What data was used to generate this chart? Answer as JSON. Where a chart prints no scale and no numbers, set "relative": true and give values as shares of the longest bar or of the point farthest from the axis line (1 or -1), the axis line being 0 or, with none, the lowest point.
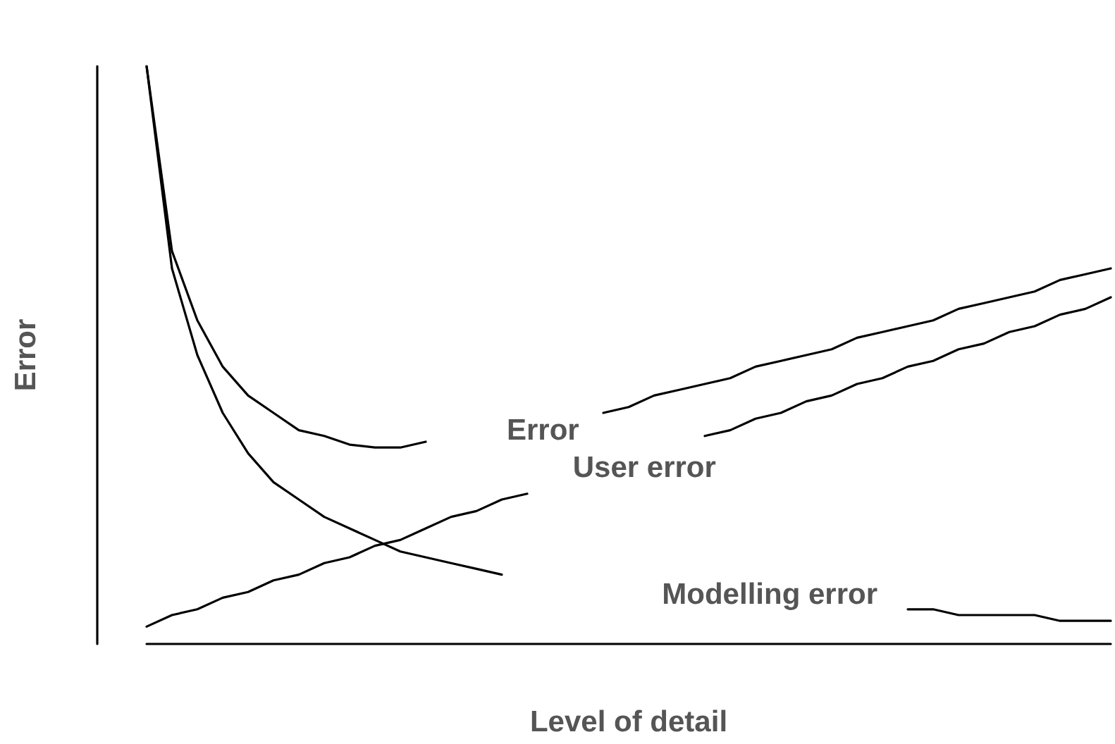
{
  "chart_data": {
    "type": "line",
    "xlabel": "Level of detail",
    "ylabel": "Error",
    "relative": true,
    "grid": false,
    "legend": false,
    "marker": "none",
    "line_style": "solid",
    "categories": [
      null,
      null,
      null,
      null,
      null,
      null,
      null,
      null,
      null,
      null,
      null,
      null,
      null,
      null,
      null,
      null,
      null,
      null,
      null,
      null,
      null,
      null,
      null,
      null,
      null,
      null,
      null,
      null,
      null,
      null,
      null,
      null,
      null,
      null,
      null,
      null,
      null,
      null,
      null
    ],
    "series": [
      {
        "name": "Error",
        "color": "#000000",
        "values": [
          1,
          0.68,
          0.56,
          0.48,
          0.43,
          0.4,
          0.37,
          0.36,
          0.345,
          0.34,
          0.34,
          0.35,
          null,
          null,
          null,
          null,
          null,
          null,
          0.4,
          0.41,
          0.43,
          0.44,
          0.45,
          0.46,
          0.48,
          0.49,
          0.5,
          0.51,
          0.53,
          0.54,
          0.55,
          0.56,
          0.58,
          0.59,
          0.6,
          0.61,
          0.63,
          0.64,
          0.65
        ]
      },
      {
        "name": "User error",
        "color": "#000000",
        "values": [
          0.03,
          0.05,
          0.06,
          0.08,
          0.09,
          0.11,
          0.12,
          0.14,
          0.15,
          0.17,
          0.18,
          0.2,
          0.22,
          0.23,
          0.25,
          0.26,
          null,
          null,
          null,
          null,
          null,
          null,
          0.36,
          0.37,
          0.39,
          0.4,
          0.42,
          0.43,
          0.45,
          0.46,
          0.48,
          0.49,
          0.51,
          0.52,
          0.54,
          0.55,
          0.57,
          0.58,
          0.6
        ]
      },
      {
        "name": "Modelling error",
        "color": "#000000",
        "values": [
          1,
          0.65,
          0.5,
          0.4,
          0.33,
          0.28,
          0.25,
          0.22,
          0.2,
          0.18,
          0.16,
          0.15,
          0.14,
          0.13,
          0.12,
          null,
          null,
          null,
          null,
          null,
          null,
          null,
          null,
          null,
          null,
          null,
          null,
          null,
          null,
          null,
          0.06,
          0.06,
          0.05,
          0.05,
          0.05,
          0.05,
          0.04,
          0.04,
          0.04
        ]
      }
    ]
  }
}
